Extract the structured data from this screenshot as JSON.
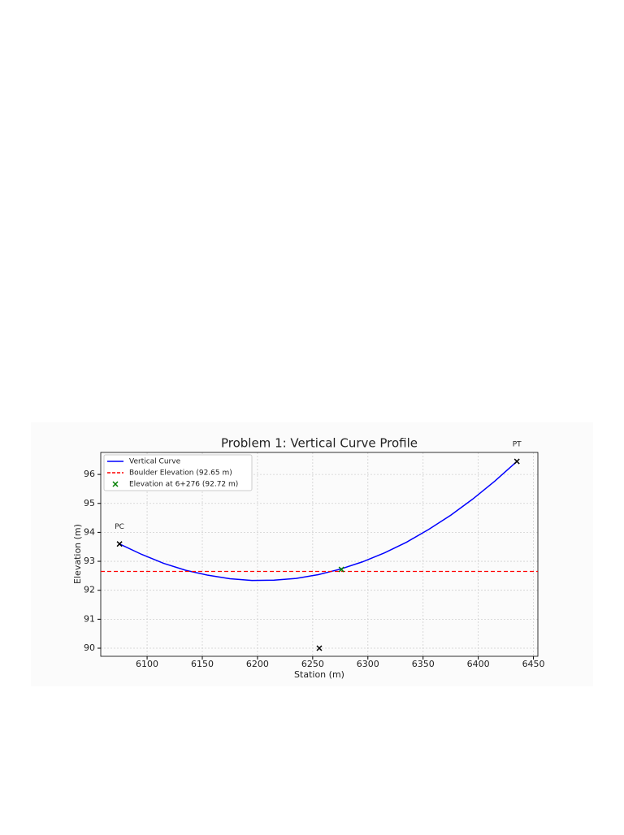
{
  "chart_data": {
    "type": "line",
    "title": "Problem 1: Vertical Curve Profile",
    "x_label": "Station (m)",
    "y_label": "Elevation (m)",
    "xlim": [
      6058,
      6454
    ],
    "ylim": [
      89.72,
      96.76
    ],
    "xticks": [
      6100,
      6150,
      6200,
      6250,
      6300,
      6350,
      6400,
      6450
    ],
    "yticks": [
      90,
      91,
      92,
      93,
      94,
      95,
      96
    ],
    "grid": true,
    "legend": "upper left",
    "series": [
      {
        "name": "Vertical Curve",
        "color": "#0000ff",
        "style": "line",
        "x": [
          6075,
          6095,
          6115,
          6135,
          6155,
          6175,
          6195,
          6215,
          6235,
          6255,
          6275,
          6295,
          6315,
          6335,
          6355,
          6375,
          6395,
          6415,
          6435
        ],
        "values": [
          93.6,
          93.24,
          92.93,
          92.69,
          92.52,
          92.4,
          92.34,
          92.35,
          92.41,
          92.54,
          92.73,
          92.98,
          93.29,
          93.66,
          94.1,
          94.59,
          95.15,
          95.77,
          96.45
        ]
      },
      {
        "name": "Boulder Elevation (92.65 m)",
        "color": "#ff0000",
        "style": "hline",
        "value": 92.65
      },
      {
        "name": "Elevation at 6+276 (92.72 m)",
        "color": "#008000",
        "style": "marker",
        "x": [
          6276
        ],
        "values": [
          92.72
        ]
      }
    ],
    "points": [
      {
        "label": "PC",
        "x": 6075,
        "y": 93.6
      },
      {
        "label": "PT",
        "x": 6435,
        "y": 96.45
      },
      {
        "x": 6256,
        "y": 90
      }
    ]
  }
}
